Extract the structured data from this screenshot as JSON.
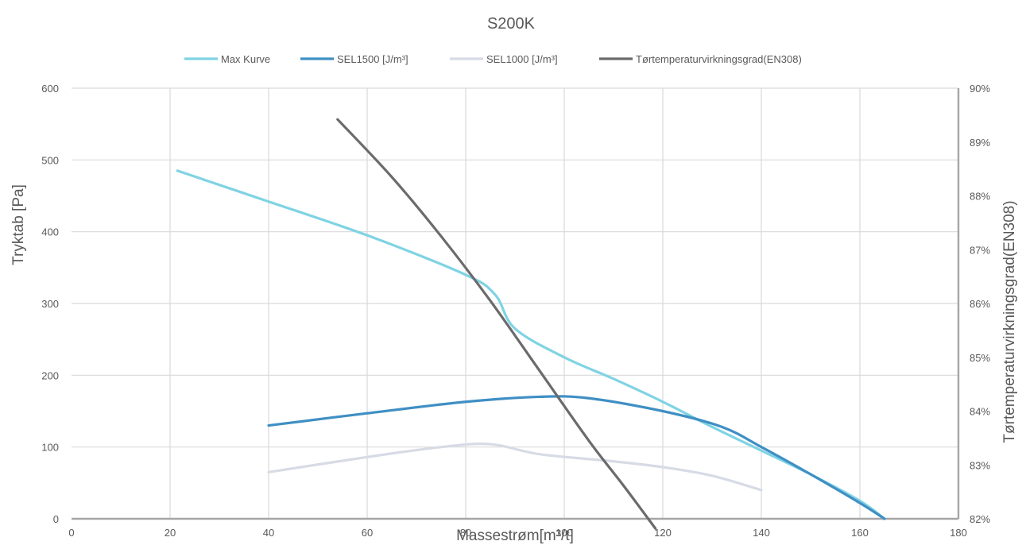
{
  "chart_data": {
    "type": "line",
    "title": "S200K",
    "xlabel": "Massestrøm[m³/t]",
    "ylabel": "Tryktab [Pa]",
    "y2label": "Tørtemperaturvirkningsgrad(EN308)",
    "xlim": [
      0,
      180
    ],
    "ylim": [
      0,
      600
    ],
    "y2lim": [
      0.82,
      0.9
    ],
    "x_ticks": [
      "0",
      "20",
      "40",
      "60",
      "80",
      "100",
      "120",
      "140",
      "160",
      "180"
    ],
    "y_ticks": [
      "0",
      "100",
      "200",
      "300",
      "400",
      "500",
      "600"
    ],
    "y2_ticks": [
      "82%",
      "83%",
      "84%",
      "85%",
      "86%",
      "87%",
      "88%",
      "89%",
      "90%"
    ],
    "grid": true,
    "legend_position": "top",
    "series": [
      {
        "name": "Max Kurve",
        "axis": "left",
        "color": "#7fd3e3",
        "points": [
          [
            21.5,
            485
          ],
          [
            40,
            442
          ],
          [
            60,
            395
          ],
          [
            80,
            340
          ],
          [
            86,
            312
          ],
          [
            90,
            265
          ],
          [
            100,
            225
          ],
          [
            110,
            195
          ],
          [
            120,
            163
          ],
          [
            130,
            128
          ],
          [
            140,
            95
          ],
          [
            150,
            62
          ],
          [
            160,
            25
          ],
          [
            165,
            0
          ]
        ]
      },
      {
        "name": "SEL1500 [J/m³]",
        "axis": "left",
        "color": "#3f8fc4",
        "points": [
          [
            40,
            130
          ],
          [
            60,
            147
          ],
          [
            80,
            163
          ],
          [
            95,
            170
          ],
          [
            105,
            168
          ],
          [
            120,
            150
          ],
          [
            132,
            128
          ],
          [
            140,
            100
          ],
          [
            150,
            62
          ],
          [
            160,
            22
          ],
          [
            165,
            0
          ]
        ]
      },
      {
        "name": "SEL1000 [J/m³]",
        "axis": "left",
        "color": "#d6dbe5",
        "points": [
          [
            40,
            65
          ],
          [
            60,
            86
          ],
          [
            75,
            100
          ],
          [
            85,
            104
          ],
          [
            95,
            90
          ],
          [
            110,
            80
          ],
          [
            120,
            72
          ],
          [
            130,
            60
          ],
          [
            140,
            40
          ]
        ]
      },
      {
        "name": "Tørtemperaturvirkningsgrad(EN308)",
        "axis": "right",
        "color": "#6b6b6b",
        "points": [
          [
            54,
            0.8942
          ],
          [
            65,
            0.8835
          ],
          [
            75,
            0.8725
          ],
          [
            85,
            0.8605
          ],
          [
            95,
            0.8475
          ],
          [
            105,
            0.8345
          ],
          [
            112,
            0.8262
          ],
          [
            118.5,
            0.8182
          ]
        ]
      }
    ]
  }
}
